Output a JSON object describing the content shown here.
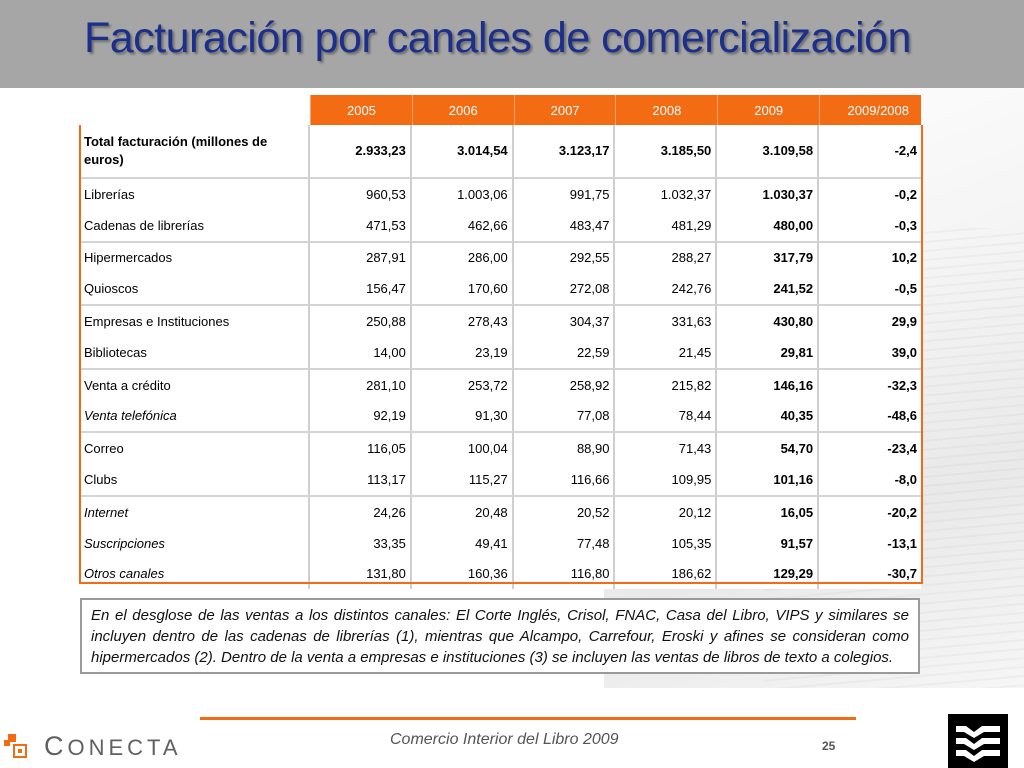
{
  "title": "Facturación por canales de comercialización",
  "table": {
    "headers": [
      "2005",
      "2006",
      "2007",
      "2008",
      "2009",
      "2009/2008"
    ],
    "rows": [
      {
        "label": "Total facturación (millones de euros)",
        "values": [
          "2.933,23",
          "3.014,54",
          "3.123,17",
          "3.185,50",
          "3.109,58",
          "-2,4"
        ]
      },
      {
        "label": "Librerías",
        "values": [
          "960,53",
          "1.003,06",
          "991,75",
          "1.032,37",
          "1.030,37",
          "-0,2"
        ]
      },
      {
        "label": "Cadenas de librerías",
        "values": [
          "471,53",
          "462,66",
          "483,47",
          "481,29",
          "480,00",
          "-0,3"
        ]
      },
      {
        "label": "Hipermercados",
        "values": [
          "287,91",
          "286,00",
          "292,55",
          "288,27",
          "317,79",
          "10,2"
        ]
      },
      {
        "label": "Quioscos",
        "values": [
          "156,47",
          "170,60",
          "272,08",
          "242,76",
          "241,52",
          "-0,5"
        ]
      },
      {
        "label": "Empresas e Instituciones",
        "values": [
          "250,88",
          "278,43",
          "304,37",
          "331,63",
          "430,80",
          "29,9"
        ]
      },
      {
        "label": "Bibliotecas",
        "values": [
          "14,00",
          "23,19",
          "22,59",
          "21,45",
          "29,81",
          "39,0"
        ]
      },
      {
        "label": "Venta a crédito",
        "values": [
          "281,10",
          "253,72",
          "258,92",
          "215,82",
          "146,16",
          "-32,3"
        ]
      },
      {
        "label": "Venta telefónica",
        "values": [
          "92,19",
          "91,30",
          "77,08",
          "78,44",
          "40,35",
          "-48,6"
        ]
      },
      {
        "label": "Correo",
        "values": [
          "116,05",
          "100,04",
          "88,90",
          "71,43",
          "54,70",
          "-23,4"
        ]
      },
      {
        "label": "Clubs",
        "values": [
          "113,17",
          "115,27",
          "116,66",
          "109,95",
          "101,16",
          "-8,0"
        ]
      },
      {
        "label": "Internet",
        "values": [
          "24,26",
          "20,48",
          "20,52",
          "20,12",
          "16,05",
          "-20,2"
        ]
      },
      {
        "label": "Suscripciones",
        "values": [
          "33,35",
          "49,41",
          "77,48",
          "105,35",
          "91,57",
          "-13,1"
        ]
      },
      {
        "label": "Otros canales",
        "values": [
          "131,80",
          "160,36",
          "116,80",
          "186,62",
          "129,29",
          "-30,7"
        ]
      }
    ]
  },
  "note": "En el desglose de las ventas a los distintos canales: El Corte Inglés, Crisol, FNAC, Casa del Libro, VIPS y similares se incluyen dentro de las cadenas de librerías (1), mientras que Alcampo, Carrefour, Eroski y afines se consideran como hipermercados (2). Dentro de la venta a empresas e instituciones (3) se incluyen las ventas de libros de texto a colegios.",
  "footer": {
    "text": "Comercio Interior del Libro 2009",
    "page": "25",
    "logo_text": "CONECTA"
  },
  "colors": {
    "accent": "#f36b12",
    "title": "#1c2f8a",
    "title_bar": "#a6a6a6"
  }
}
